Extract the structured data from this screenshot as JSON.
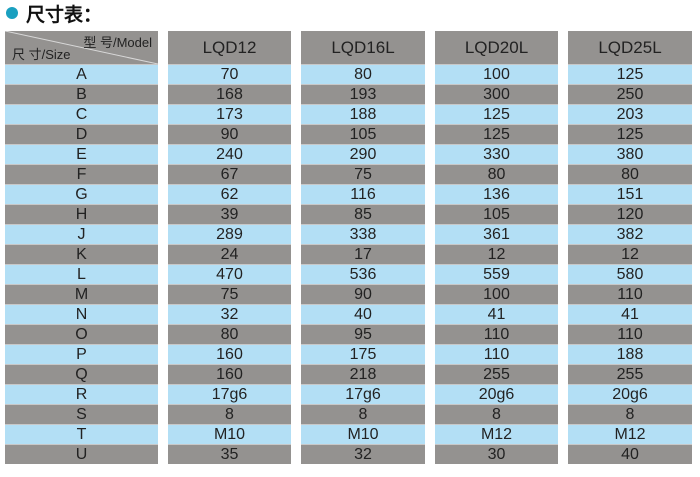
{
  "title": "尺寸表：",
  "colors": {
    "accent": "#1aa0c0",
    "row_blue": "#b3dff5",
    "row_gray": "#949290"
  },
  "table": {
    "corner_model": "型 号/Model",
    "corner_size": "尺 寸/Size",
    "columns": [
      "LQD12",
      "LQD16L",
      "LQD20L",
      "LQD25L"
    ],
    "rows": [
      {
        "size": "A",
        "values": [
          "70",
          "80",
          "100",
          "125"
        ]
      },
      {
        "size": "B",
        "values": [
          "168",
          "193",
          "300",
          "250"
        ]
      },
      {
        "size": "C",
        "values": [
          "173",
          "188",
          "125",
          "203"
        ]
      },
      {
        "size": "D",
        "values": [
          "90",
          "105",
          "125",
          "125"
        ]
      },
      {
        "size": "E",
        "values": [
          "240",
          "290",
          "330",
          "380"
        ]
      },
      {
        "size": "F",
        "values": [
          "67",
          "75",
          "80",
          "80"
        ]
      },
      {
        "size": "G",
        "values": [
          "62",
          "116",
          "136",
          "151"
        ]
      },
      {
        "size": "H",
        "values": [
          "39",
          "85",
          "105",
          "120"
        ]
      },
      {
        "size": "J",
        "values": [
          "289",
          "338",
          "361",
          "382"
        ]
      },
      {
        "size": "K",
        "values": [
          "24",
          "17",
          "12",
          "12"
        ]
      },
      {
        "size": "L",
        "values": [
          "470",
          "536",
          "559",
          "580"
        ]
      },
      {
        "size": "M",
        "values": [
          "75",
          "90",
          "100",
          "110"
        ]
      },
      {
        "size": "N",
        "values": [
          "32",
          "40",
          "41",
          "41"
        ]
      },
      {
        "size": "O",
        "values": [
          "80",
          "95",
          "110",
          "110"
        ]
      },
      {
        "size": "P",
        "values": [
          "160",
          "175",
          "110",
          "188"
        ]
      },
      {
        "size": "Q",
        "values": [
          "160",
          "218",
          "255",
          "255"
        ]
      },
      {
        "size": "R",
        "values": [
          "17g6",
          "17g6",
          "20g6",
          "20g6"
        ]
      },
      {
        "size": "S",
        "values": [
          "8",
          "8",
          "8",
          "8"
        ]
      },
      {
        "size": "T",
        "values": [
          "M10",
          "M10",
          "M12",
          "M12"
        ]
      },
      {
        "size": "U",
        "values": [
          "35",
          "32",
          "30",
          "40"
        ]
      }
    ]
  }
}
